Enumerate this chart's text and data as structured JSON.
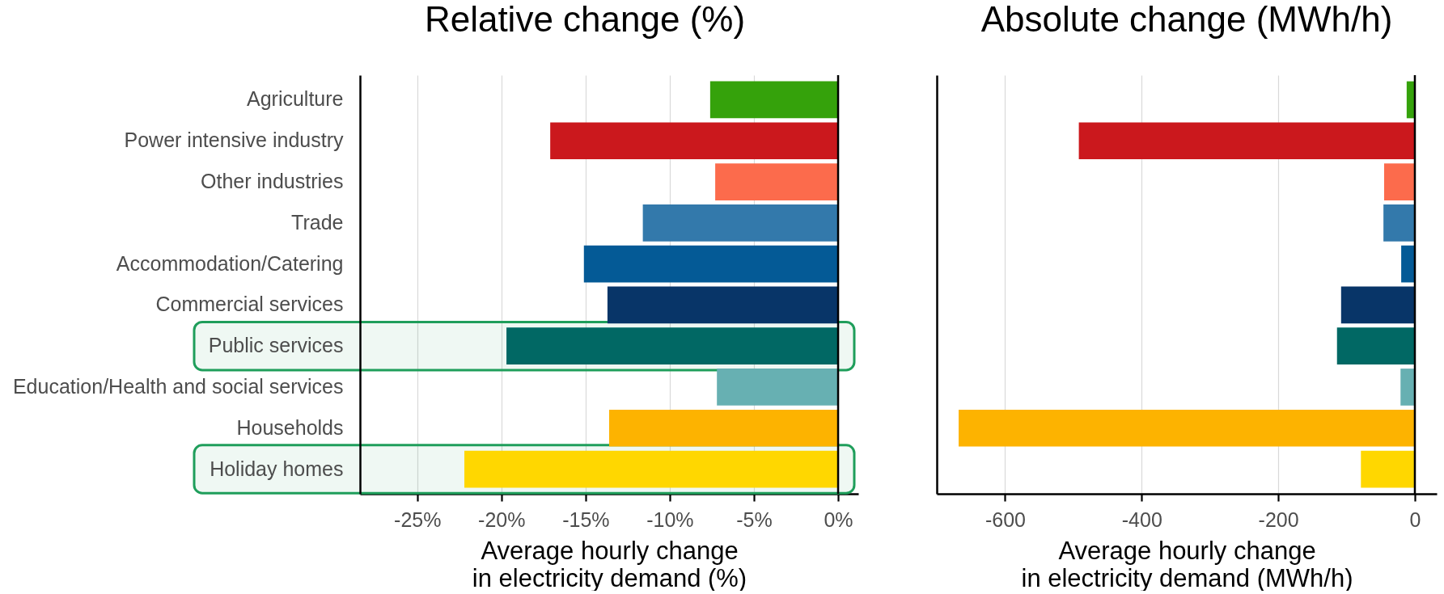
{
  "chart_data": [
    {
      "type": "bar",
      "orientation": "horizontal",
      "title": "Relative change (%)",
      "xlabel": "Average hourly change\nin electricity demand (%)",
      "categories": [
        "Agriculture",
        "Power intensive industry",
        "Other industries",
        "Trade",
        "Accommodation/Catering",
        "Commercial services",
        "Public services",
        "Education/Health and social services",
        "Households",
        "Holiday homes"
      ],
      "values": [
        -7.6,
        -17.1,
        -7.3,
        -11.6,
        -15.1,
        -13.7,
        -19.7,
        -7.2,
        -13.6,
        -22.2
      ],
      "colors": [
        "#35a20b",
        "#cb181d",
        "#fc6b4c",
        "#3379ab",
        "#045a96",
        "#083568",
        "#016864",
        "#67b0b2",
        "#fdb300",
        "#ffd700"
      ],
      "xlim": [
        -28.4,
        1.2
      ],
      "xticks": [
        {
          "value": -25,
          "label": "-25%"
        },
        {
          "value": -20,
          "label": "-20%"
        },
        {
          "value": -15,
          "label": "-15%"
        },
        {
          "value": -10,
          "label": "-10%"
        },
        {
          "value": -5,
          "label": "-5%"
        },
        {
          "value": 0,
          "label": "0%"
        }
      ],
      "grid": "x",
      "ref_lines": [
        {
          "axis": "x",
          "value": 0,
          "color": "#000000"
        }
      ],
      "bands": [
        {
          "axis": "y",
          "from": "Public services",
          "to": "Public services",
          "color": "#1f9e5b"
        },
        {
          "axis": "y",
          "from": "Holiday homes",
          "to": "Holiday homes",
          "color": "#1f9e5b"
        }
      ]
    },
    {
      "type": "bar",
      "orientation": "horizontal",
      "title": "Absolute change (MWh/h)",
      "xlabel": "Average hourly change\nin electricity demand (MWh/h)",
      "categories": [
        null,
        null,
        null,
        null,
        null,
        null,
        null,
        null,
        null,
        null
      ],
      "values": [
        -12,
        -492,
        -45,
        -46,
        -20,
        -108,
        -114,
        -21,
        -668,
        -79
      ],
      "colors": [
        "#35a20b",
        "#cb181d",
        "#fc6b4c",
        "#3379ab",
        "#045a96",
        "#083568",
        "#016864",
        "#67b0b2",
        "#fdb300",
        "#ffd700"
      ],
      "xlim": [
        -700,
        32
      ],
      "xticks": [
        -600,
        -400,
        -200,
        0
      ],
      "grid": "x",
      "tick_labels": "x",
      "ref_lines": [
        {
          "axis": "x",
          "value": 0,
          "color": "#000000"
        }
      ]
    }
  ]
}
